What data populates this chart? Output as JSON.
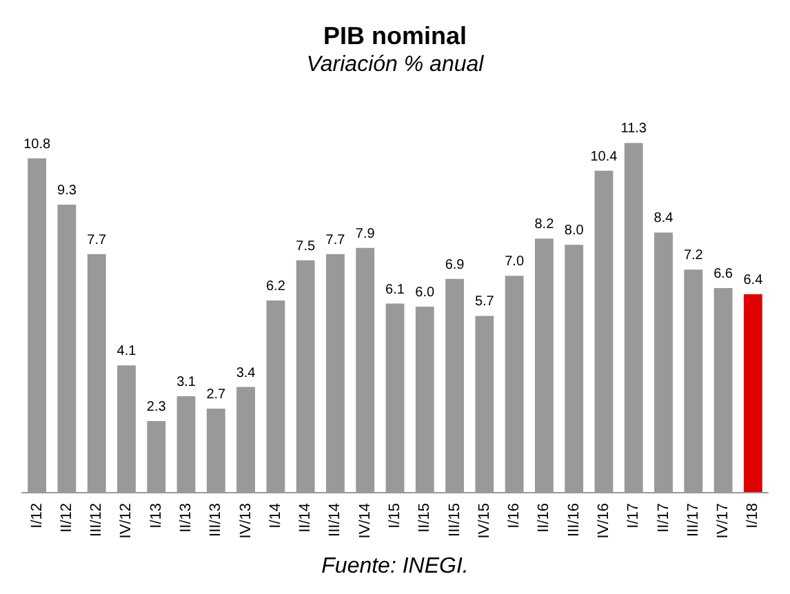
{
  "chart_data": {
    "type": "bar",
    "title": "PIB nominal",
    "subtitle": "Variación % anual",
    "categories": [
      "I/12",
      "II/12",
      "III/12",
      "IV/12",
      "I/13",
      "II/13",
      "III/13",
      "IV/13",
      "I/14",
      "II/14",
      "III/14",
      "IV/14",
      "I/15",
      "II/15",
      "III/15",
      "IV/15",
      "I/16",
      "II/16",
      "III/16",
      "IV/16",
      "I/17",
      "II/17",
      "III/17",
      "IV/17",
      "I/18"
    ],
    "values": [
      10.8,
      9.3,
      7.7,
      4.1,
      2.3,
      3.1,
      2.7,
      3.4,
      6.2,
      7.5,
      7.7,
      7.9,
      6.1,
      6.0,
      6.9,
      5.7,
      7.0,
      8.2,
      8.0,
      10.4,
      11.3,
      8.4,
      7.2,
      6.6,
      6.4
    ],
    "value_labels": [
      "10.8",
      "9.3",
      "7.7",
      "4.1",
      "2.3",
      "3.1",
      "2.7",
      "3.4",
      "6.2",
      "7.5",
      "7.7",
      "7.9",
      "6.1",
      "6.0",
      "6.9",
      "5.7",
      "7.0",
      "8.2",
      "8.0",
      "10.4",
      "11.3",
      "8.4",
      "7.2",
      "6.6",
      "6.4"
    ],
    "colors": [
      "#999999",
      "#999999",
      "#999999",
      "#999999",
      "#999999",
      "#999999",
      "#999999",
      "#999999",
      "#999999",
      "#999999",
      "#999999",
      "#999999",
      "#999999",
      "#999999",
      "#999999",
      "#999999",
      "#999999",
      "#999999",
      "#999999",
      "#999999",
      "#999999",
      "#999999",
      "#999999",
      "#999999",
      "#e00000"
    ],
    "annotations": [
      "Fuente: INEGI."
    ]
  }
}
